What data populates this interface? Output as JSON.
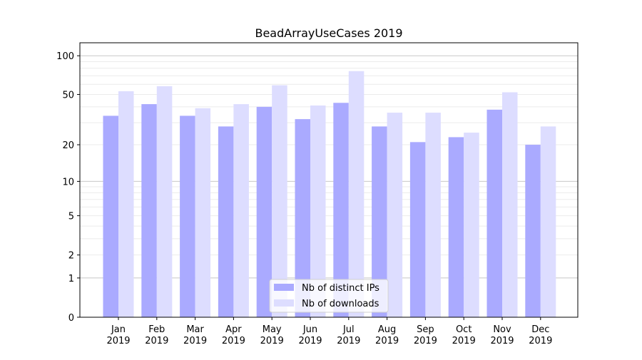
{
  "chart_data": {
    "type": "bar",
    "title": "BeadArrayUseCases 2019",
    "xlabel": "",
    "ylabel": "",
    "yscale": "log10(1+y)",
    "ylim": [
      0,
      120
    ],
    "yticks": [
      0,
      1,
      2,
      5,
      10,
      20,
      50,
      100
    ],
    "grid": true,
    "legend_position": "bottom-center",
    "categories": [
      "Jan\n2019",
      "Feb\n2019",
      "Mar\n2019",
      "Apr\n2019",
      "May\n2019",
      "Jun\n2019",
      "Jul\n2019",
      "Aug\n2019",
      "Sep\n2019",
      "Oct\n2019",
      "Nov\n2019",
      "Dec\n2019"
    ],
    "series": [
      {
        "name": "Nb of distinct IPs",
        "color": "#aaaaff",
        "values": [
          34,
          42,
          34,
          28,
          40,
          32,
          43,
          28,
          21,
          23,
          38,
          20
        ]
      },
      {
        "name": "Nb of downloads",
        "color": "#ddddff",
        "values": [
          53,
          58,
          39,
          42,
          59,
          41,
          76,
          36,
          36,
          25,
          52,
          28
        ]
      }
    ]
  }
}
